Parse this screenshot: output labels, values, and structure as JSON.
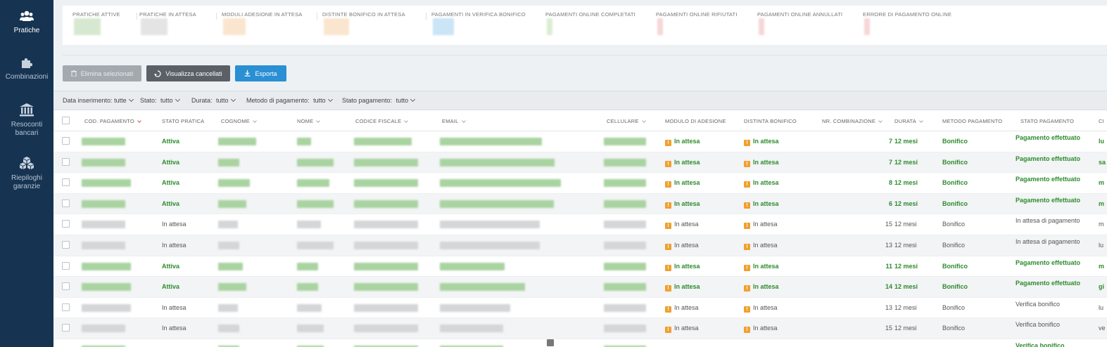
{
  "sidebar": {
    "items": [
      {
        "label": "Pratiche",
        "icon": "users-icon",
        "active": true
      },
      {
        "label": "Combinazioni",
        "icon": "puzzle-icon",
        "active": false
      },
      {
        "label": "Resoconti bancari",
        "icon": "bank-icon",
        "active": false
      },
      {
        "label": "Riepiloghi garanzie",
        "icon": "boxes-icon",
        "active": false
      }
    ]
  },
  "stats": [
    {
      "label": "PRATICHE ATTIVE",
      "color": "#b5d6a8"
    },
    {
      "label": "PRATICHE IN ATTESA",
      "color": "#cfcfcf"
    },
    {
      "label": "MODULI ADESIONE IN ATTESA",
      "color": "#f6d2a8"
    },
    {
      "label": "DISTINTE BONIFICO IN ATTESA",
      "color": "#f6d2a8"
    },
    {
      "label": "PAGAMENTI IN VERIFICA BONIFICO",
      "color": "#9ed0ef"
    },
    {
      "label": "PAGAMENTI ONLINE COMPLETATI",
      "color": "#bfe0b0"
    },
    {
      "label": "PAGAMENTI ONLINE RIFIUTATI",
      "color": "#f2b5b5"
    },
    {
      "label": "PAGAMENTI ONLINE ANNULLATI",
      "color": "#f2b5b5"
    },
    {
      "label": "ERRORE DI PAGAMENTO ONLINE",
      "color": "#f2b5b5"
    }
  ],
  "toolbar": {
    "delete_label": "Elimina selezionati",
    "view_deleted_label": "Visualizza cancellati",
    "export_label": "Esporta"
  },
  "filters": [
    {
      "label": "Data inserimento:",
      "value": "tutte"
    },
    {
      "label": "Stato:",
      "value": "tutto"
    },
    {
      "label": "Durata:",
      "value": "tutto"
    },
    {
      "label": "Metodo di pagamento:",
      "value": "tutto"
    },
    {
      "label": "Stato pagamento:",
      "value": "tutto"
    }
  ],
  "columns": {
    "cod": "COD. PAGAMENTO",
    "stato": "STATO PRATICA",
    "cognome": "COGNOME",
    "nome": "NOME",
    "cf": "CODICE FISCALE",
    "email": "EMAIL",
    "cell": "CELLULARE",
    "modulo": "MODULO DI ADESIONE",
    "distinta": "DISTINTA BONIFICO",
    "nr": "NR. COMBINAZIONE",
    "durata": "DURATA",
    "metodo": "METODO PAGAMENTO",
    "statopag": "STATO PAGAMENTO",
    "last": "CI"
  },
  "rows": [
    {
      "stato": "Attiva",
      "modulo": "In attesa",
      "distinta": "In attesa",
      "nr": "7",
      "durata": "12 mesi",
      "metodo": "Bonifico",
      "statopag": "Pagamento effettuato",
      "last": "lu",
      "active": true
    },
    {
      "stato": "Attiva",
      "modulo": "In attesa",
      "distinta": "In attesa",
      "nr": "7",
      "durata": "12 mesi",
      "metodo": "Bonifico",
      "statopag": "Pagamento effettuato",
      "last": "sa",
      "active": true
    },
    {
      "stato": "Attiva",
      "modulo": "In attesa",
      "distinta": "In attesa",
      "nr": "8",
      "durata": "12 mesi",
      "metodo": "Bonifico",
      "statopag": "Pagamento effettuato",
      "last": "m",
      "active": true
    },
    {
      "stato": "Attiva",
      "modulo": "In attesa",
      "distinta": "In attesa",
      "nr": "6",
      "durata": "12 mesi",
      "metodo": "Bonifico",
      "statopag": "Pagamento effettuato",
      "last": "m",
      "active": true
    },
    {
      "stato": "In attesa",
      "modulo": "In attesa",
      "distinta": "In attesa",
      "nr": "15",
      "durata": "12 mesi",
      "metodo": "Bonifico",
      "statopag": "In attesa di pagamento",
      "last": "m",
      "active": false
    },
    {
      "stato": "In attesa",
      "modulo": "In attesa",
      "distinta": "In attesa",
      "nr": "13",
      "durata": "12 mesi",
      "metodo": "Bonifico",
      "statopag": "In attesa di pagamento",
      "last": "lu",
      "active": false
    },
    {
      "stato": "Attiva",
      "modulo": "In attesa",
      "distinta": "In attesa",
      "nr": "11",
      "durata": "12 mesi",
      "metodo": "Bonifico",
      "statopag": "Pagamento effettuato",
      "last": "m",
      "active": true
    },
    {
      "stato": "Attiva",
      "modulo": "In attesa",
      "distinta": "In attesa",
      "nr": "14",
      "durata": "12 mesi",
      "metodo": "Bonifico",
      "statopag": "Pagamento effettuato",
      "last": "gi",
      "active": true
    },
    {
      "stato": "In attesa",
      "modulo": "In attesa",
      "distinta": "In attesa",
      "nr": "13",
      "durata": "12 mesi",
      "metodo": "Bonifico",
      "statopag": "Verifica bonifico",
      "last": "lu",
      "active": false
    },
    {
      "stato": "In attesa",
      "modulo": "In attesa",
      "distinta": "In attesa",
      "nr": "15",
      "durata": "12 mesi",
      "metodo": "Bonifico",
      "statopag": "Verifica bonifico",
      "last": "ve",
      "active": false
    },
    {
      "stato": "",
      "modulo": "",
      "distinta": "",
      "nr": "",
      "durata": "",
      "metodo": "",
      "statopag": "Verifica bonifico",
      "last": "",
      "active": true
    }
  ]
}
